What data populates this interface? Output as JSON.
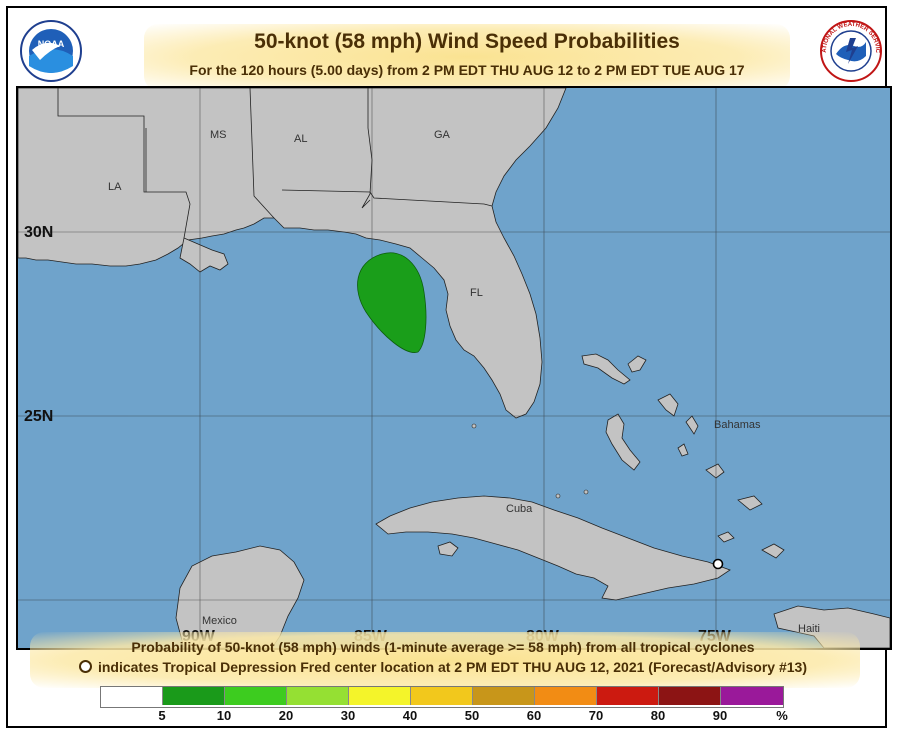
{
  "header": {
    "title": "50-knot (58 mph) Wind Speed Probabilities",
    "subtitle": "For the 120 hours (5.00 days) from 2 PM EDT THU AUG 12 to 2 PM EDT TUE AUG 17"
  },
  "logos": {
    "left": "noaa-logo",
    "left_text": "NOAA",
    "right": "nws-logo",
    "right_text": "NATIONAL WEATHER SERVICE"
  },
  "map": {
    "lat_labels": [
      "30N",
      "25N"
    ],
    "lon_labels": [
      "90W",
      "85W",
      "80W",
      "75W"
    ],
    "places": {
      "la": "LA",
      "ms": "MS",
      "al": "AL",
      "ga": "GA",
      "fl": "FL",
      "bahamas": "Bahamas",
      "cuba": "Cuba",
      "mexico": "Mexico",
      "haiti": "Haiti"
    },
    "colors": {
      "ocean": "#6fa3cb",
      "land": "#c3c3c3",
      "probability_area": "#1a9e1a"
    },
    "probability_area": "5-10%",
    "center_marker": "Tropical Depression Fred center"
  },
  "footer": {
    "line1": "Probability of 50-knot (58 mph) winds (1-minute average >= 58 mph) from all tropical cyclones",
    "line2": "indicates Tropical Depression Fred center location at 2 PM EDT THU AUG 12, 2021 (Forecast/Advisory #13)"
  },
  "legend": {
    "colors": [
      "#ffffff",
      "#1a9a1a",
      "#3dcc1f",
      "#95e033",
      "#f4f42a",
      "#f2c81c",
      "#c8961a",
      "#f28c14",
      "#cc1a10",
      "#8c1414",
      "#9a199a"
    ],
    "labels": [
      "5",
      "10",
      "20",
      "30",
      "40",
      "50",
      "60",
      "70",
      "80",
      "90",
      "%"
    ]
  }
}
